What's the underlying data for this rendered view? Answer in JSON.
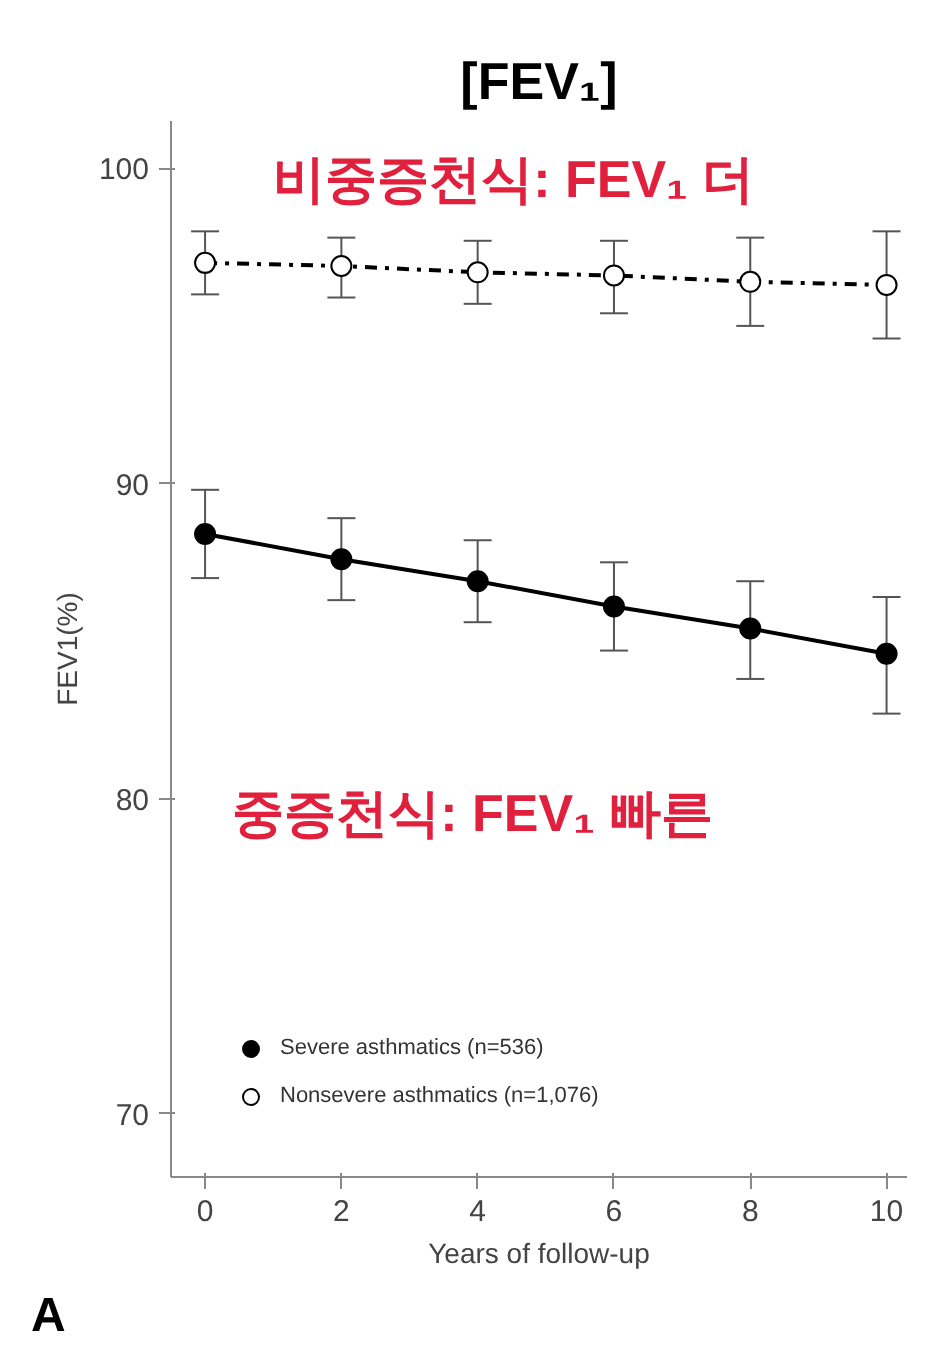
{
  "chart_data": {
    "type": "line",
    "title": "[FEV₁]",
    "xlabel": "Years of follow-up",
    "ylabel": "FEV1(%)",
    "x": [
      0,
      2,
      4,
      6,
      8,
      10
    ],
    "xlim": [
      -0.5,
      10.3
    ],
    "ylim": [
      68,
      101.5
    ],
    "xticks": [
      0,
      2,
      4,
      6,
      8,
      10
    ],
    "yticks": [
      70,
      80,
      90,
      100
    ],
    "grid": false,
    "legend": "bottom left",
    "marker": "circle",
    "series": [
      {
        "name": "Severe asthmatics (n=536)",
        "color": "#000000",
        "line_style": "solid",
        "values": [
          88.4,
          87.6,
          86.9,
          86.1,
          85.4,
          84.6
        ],
        "errors": [
          [
            87.0,
            89.8
          ],
          [
            86.3,
            88.9
          ],
          [
            85.6,
            88.2
          ],
          [
            84.7,
            87.5
          ],
          [
            83.8,
            86.9
          ],
          [
            82.7,
            86.4
          ]
        ]
      },
      {
        "name": "Nonsevere asthmatics (n=1,076)",
        "color": "#000000",
        "line_style": "dashdot",
        "values": [
          97.0,
          96.9,
          96.7,
          96.6,
          96.4,
          96.3
        ],
        "errors": [
          [
            96.0,
            98.0
          ],
          [
            95.9,
            97.8
          ],
          [
            95.7,
            97.7
          ],
          [
            95.4,
            97.7
          ],
          [
            95.0,
            97.8
          ],
          [
            94.6,
            98.0
          ]
        ]
      }
    ],
    "annotations": [
      "비중증천식: FEV₁ 더",
      "중증천식: FEV₁ 빠른",
      "A"
    ]
  }
}
